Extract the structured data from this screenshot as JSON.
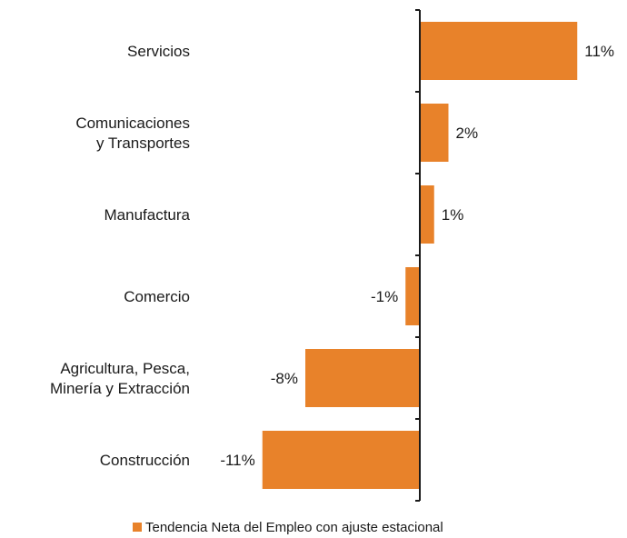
{
  "chart_data": {
    "type": "bar",
    "orientation": "horizontal",
    "categories": [
      [
        "Servicios"
      ],
      [
        "Comunicaciones",
        "y Transportes"
      ],
      [
        "Manufactura"
      ],
      [
        "Comercio"
      ],
      [
        "Agricultura, Pesca,",
        "Minería y Extracción"
      ],
      [
        "Construcción"
      ]
    ],
    "series": [
      {
        "name": "Tendencia Neta del Empleo con ajuste estacional",
        "values": [
          11,
          2,
          1,
          -1,
          -8,
          -11
        ],
        "value_labels": [
          "11%",
          "2%",
          "1%",
          "-1%",
          "-8%",
          "-11%"
        ],
        "color": "#E8822A"
      }
    ],
    "xlim": [
      -11,
      11
    ],
    "grid": false,
    "legend_position": "bottom"
  }
}
